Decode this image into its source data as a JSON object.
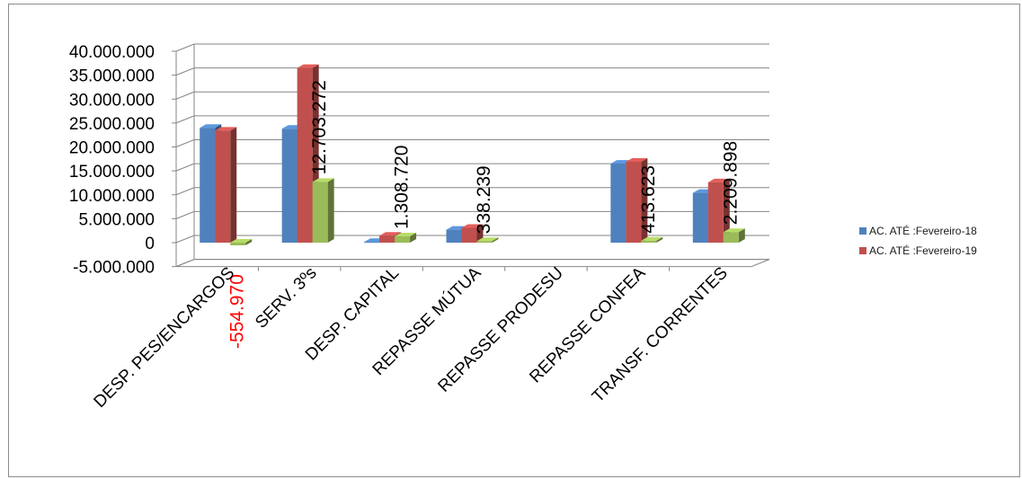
{
  "chart_data": {
    "type": "bar",
    "title": "",
    "xlabel": "",
    "ylabel": "",
    "ylim": [
      -5000000,
      40000000
    ],
    "yticks": [
      -5000000,
      0,
      5000000,
      10000000,
      15000000,
      20000000,
      25000000,
      30000000,
      35000000,
      40000000
    ],
    "ytick_labels": [
      "-5.000.000",
      "0",
      "5.000.000",
      "10.000.000",
      "15.000.000",
      "20.000.000",
      "25.000.000",
      "30.000.000",
      "35.000.000",
      "40.000.000"
    ],
    "grid": true,
    "legend_position": "right",
    "categories": [
      "DESP. PES/ENCARGOS",
      "SERV. 3ºs",
      "DESP. CAPITAL",
      "REPASSE MÚTUA",
      "REPASSE PRODESU",
      "REPASSE CONFEA",
      "TRANSF. CORRENTES"
    ],
    "series": [
      {
        "name": "AC. ATÉ :Fevereiro-18",
        "color": "#4f81bd",
        "values": [
          24000000,
          23800000,
          150000,
          2700000,
          0,
          16500000,
          10400000
        ]
      },
      {
        "name": "AC. ATÉ :Fevereiro-19",
        "color": "#c0504d",
        "values": [
          23400000,
          36500000,
          1450000,
          3100000,
          0,
          16900000,
          12600000
        ]
      },
      {
        "name": "",
        "color": "#9bbb59",
        "values": [
          -554970,
          12703272,
          1308720,
          338239,
          0,
          413623,
          2209898
        ]
      }
    ],
    "data_labels": [
      "-554.970",
      "12.703.272",
      "1.308.720",
      "338.239",
      "",
      "413.623",
      "2.209.898"
    ],
    "data_label_colors": [
      "#ff0000",
      "#000000",
      "#000000",
      "#000000",
      "#000000",
      "#000000",
      "#000000"
    ]
  }
}
